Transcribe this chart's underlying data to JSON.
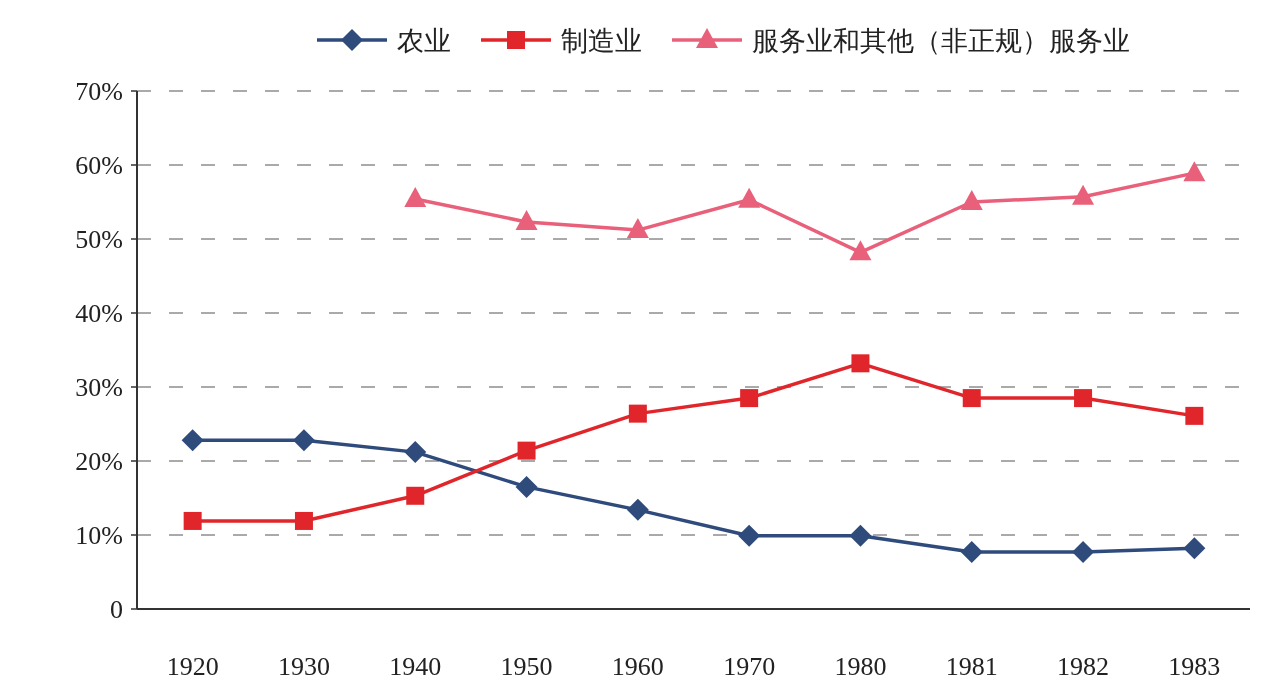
{
  "chart_data": {
    "type": "line",
    "categories": [
      "1920",
      "1930",
      "1940",
      "1950",
      "1960",
      "1970",
      "1980",
      "1981",
      "1982",
      "1983"
    ],
    "series": [
      {
        "name": "农业",
        "color": "#2f4b7c",
        "marker": "diamond",
        "values": [
          22.8,
          22.8,
          21.2,
          16.5,
          13.4,
          9.9,
          9.9,
          7.7,
          7.7,
          8.2
        ]
      },
      {
        "name": "制造业",
        "color": "#e0262b",
        "marker": "square",
        "values": [
          11.9,
          11.9,
          15.3,
          21.4,
          26.4,
          28.5,
          33.2,
          28.5,
          28.5,
          26.1
        ]
      },
      {
        "name": "服务业和其他（非正规）服务业",
        "color": "#e8607a",
        "marker": "triangle",
        "values": [
          null,
          null,
          55.4,
          52.3,
          51.2,
          55.3,
          48.2,
          55.0,
          55.7,
          58.9
        ]
      }
    ],
    "ylim": [
      0,
      70
    ],
    "yticks": [
      {
        "value": 0,
        "label": "0"
      },
      {
        "value": 10,
        "label": "10%"
      },
      {
        "value": 20,
        "label": "20%"
      },
      {
        "value": 30,
        "label": "30%"
      },
      {
        "value": 40,
        "label": "40%"
      },
      {
        "value": 50,
        "label": "50%"
      },
      {
        "value": 60,
        "label": "60%"
      },
      {
        "value": 70,
        "label": "70%"
      }
    ],
    "grid": "y",
    "legend": "top",
    "line_style": "solid"
  }
}
